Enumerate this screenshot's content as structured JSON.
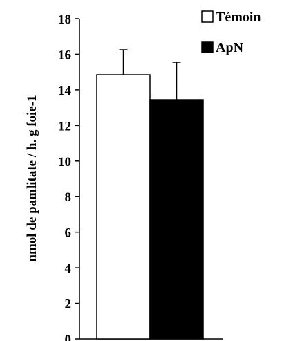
{
  "chart_data": {
    "type": "bar",
    "title": "",
    "xlabel": "",
    "ylabel": "nmol de pamlitate / h. g foie-1",
    "ylim": [
      0,
      18
    ],
    "yticks": [
      0,
      2,
      4,
      6,
      8,
      10,
      12,
      14,
      16,
      18
    ],
    "grid": false,
    "legend_position": "top-right",
    "series": [
      {
        "name": "Témoin",
        "value": 14.85,
        "error": 1.4,
        "color": "#ffffff",
        "edge": "#000000"
      },
      {
        "name": "ApN",
        "value": 13.45,
        "error": 2.1,
        "color": "#000000",
        "edge": "#000000"
      }
    ]
  }
}
